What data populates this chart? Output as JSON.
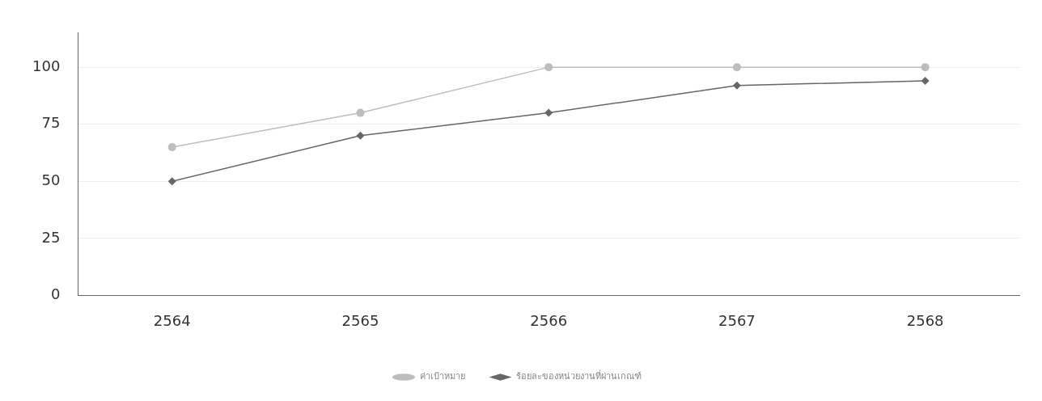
{
  "chart_data": {
    "type": "line",
    "categories": [
      "2564",
      "2565",
      "2566",
      "2567",
      "2568"
    ],
    "series": [
      {
        "name": "ค่าเป้าหมาย",
        "color": "#bdbdbd",
        "values": [
          65,
          80,
          100,
          100,
          100
        ],
        "marker": "circle"
      },
      {
        "name": "ร้อยละของหน่วยงานที่ผ่านเกณฑ์",
        "color": "#666666",
        "values": [
          50,
          70,
          80,
          92,
          94
        ],
        "marker": "diamond"
      }
    ],
    "ylim": [
      0,
      115
    ],
    "yticks": [
      0,
      25,
      50,
      75,
      100
    ],
    "grid": "y",
    "legend": "bottom"
  }
}
